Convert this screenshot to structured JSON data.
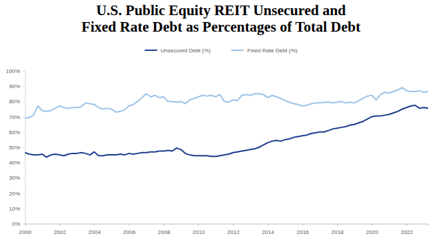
{
  "chart_data": {
    "type": "line",
    "title": [
      "U.S. Public Equity REIT Unsecured and",
      "Fixed Rate Debt as Percentages of Total Debt"
    ],
    "legend": "top",
    "grid": false,
    "x": [
      2000,
      2000.25,
      2000.5,
      2000.75,
      2001,
      2001.25,
      2001.5,
      2001.75,
      2002,
      2002.25,
      2002.5,
      2002.75,
      2003,
      2003.25,
      2003.5,
      2003.75,
      2004,
      2004.25,
      2004.5,
      2004.75,
      2005,
      2005.25,
      2005.5,
      2005.75,
      2006,
      2006.25,
      2006.5,
      2006.75,
      2007,
      2007.25,
      2007.5,
      2007.75,
      2008,
      2008.25,
      2008.5,
      2008.75,
      2009,
      2009.25,
      2009.5,
      2009.75,
      2010,
      2010.25,
      2010.5,
      2010.75,
      2011,
      2011.25,
      2011.5,
      2011.75,
      2012,
      2012.25,
      2012.5,
      2012.75,
      2013,
      2013.25,
      2013.5,
      2013.75,
      2014,
      2014.25,
      2014.5,
      2014.75,
      2015,
      2015.25,
      2015.5,
      2015.75,
      2016,
      2016.25,
      2016.5,
      2016.75,
      2017,
      2017.25,
      2017.5,
      2017.75,
      2018,
      2018.25,
      2018.5,
      2018.75,
      2019,
      2019.25,
      2019.5,
      2019.75,
      2020,
      2020.25,
      2020.5,
      2020.75,
      2021,
      2021.25,
      2021.5,
      2021.75,
      2022,
      2022.25,
      2022.5,
      2022.75,
      2023,
      2023.25
    ],
    "xlim": [
      2000,
      2023.25
    ],
    "xticks": [
      2000,
      2002,
      2004,
      2006,
      2008,
      2010,
      2012,
      2014,
      2016,
      2018,
      2020,
      2022
    ],
    "ylim": [
      0,
      100
    ],
    "yticks": [
      {
        "value": 0,
        "label": "0%"
      },
      {
        "value": 10,
        "label": "10%"
      },
      {
        "value": 20,
        "label": "20%"
      },
      {
        "value": 30,
        "label": "30%"
      },
      {
        "value": 40,
        "label": "40%"
      },
      {
        "value": 50,
        "label": "50%"
      },
      {
        "value": 60,
        "label": "60%"
      },
      {
        "value": 70,
        "label": "70%"
      },
      {
        "value": 80,
        "label": "80%"
      },
      {
        "value": 90,
        "label": "90%"
      },
      {
        "value": 100,
        "label": "100%"
      }
    ],
    "series": [
      {
        "name": "Unsecured Debt (%)",
        "color": "#203f8f",
        "values": [
          46.5,
          45.5,
          45,
          45,
          45.5,
          43.5,
          45,
          45.5,
          45,
          44.5,
          45.5,
          46,
          46,
          46.5,
          46,
          45,
          47,
          44.5,
          44.5,
          45,
          45,
          45,
          45.5,
          45,
          46,
          45.5,
          46,
          46.5,
          46.5,
          47,
          47,
          47.5,
          47.5,
          48,
          47.5,
          49.5,
          48.5,
          46,
          45,
          44.5,
          44.5,
          44.5,
          44.5,
          44,
          44,
          44.5,
          45,
          45.5,
          46.5,
          47,
          47.5,
          48,
          48.5,
          49,
          50,
          51.5,
          53,
          54,
          54.5,
          54,
          55,
          55.5,
          56.5,
          57,
          57.5,
          58,
          59,
          59.5,
          60,
          60,
          61,
          62,
          62.5,
          63,
          63.5,
          64.5,
          65,
          66,
          67,
          68.5,
          70,
          70.5,
          70.5,
          71,
          71.5,
          72.5,
          73.5,
          75,
          76,
          77,
          77.5,
          75.5,
          76,
          75.5
        ]
      },
      {
        "name": "Fixed Rate Debt (%)",
        "color": "#9dc3e6",
        "values": [
          69,
          69.5,
          71,
          77,
          74,
          73.5,
          74,
          75.5,
          77,
          76,
          75.5,
          76,
          76,
          76.5,
          79,
          78.5,
          78,
          76,
          75,
          75.5,
          75,
          73,
          73.5,
          74.5,
          77,
          78,
          80,
          82.5,
          85,
          83,
          84,
          82.5,
          83,
          80,
          80,
          79.5,
          80,
          78.5,
          81,
          82,
          83,
          84,
          83.5,
          84,
          83,
          84.5,
          80,
          79.5,
          81,
          80.5,
          84,
          84.5,
          84,
          85,
          85,
          84.5,
          82.5,
          84,
          83,
          82,
          80.5,
          79.5,
          78.5,
          78,
          77,
          77.5,
          78.5,
          79,
          79,
          79.5,
          79.5,
          79,
          79.5,
          80,
          79,
          79.5,
          79,
          80.5,
          82,
          83.5,
          84,
          81,
          84.5,
          86,
          85.5,
          86.5,
          87.5,
          89,
          87,
          86.5,
          86.5,
          87,
          86,
          86.5
        ]
      }
    ]
  }
}
